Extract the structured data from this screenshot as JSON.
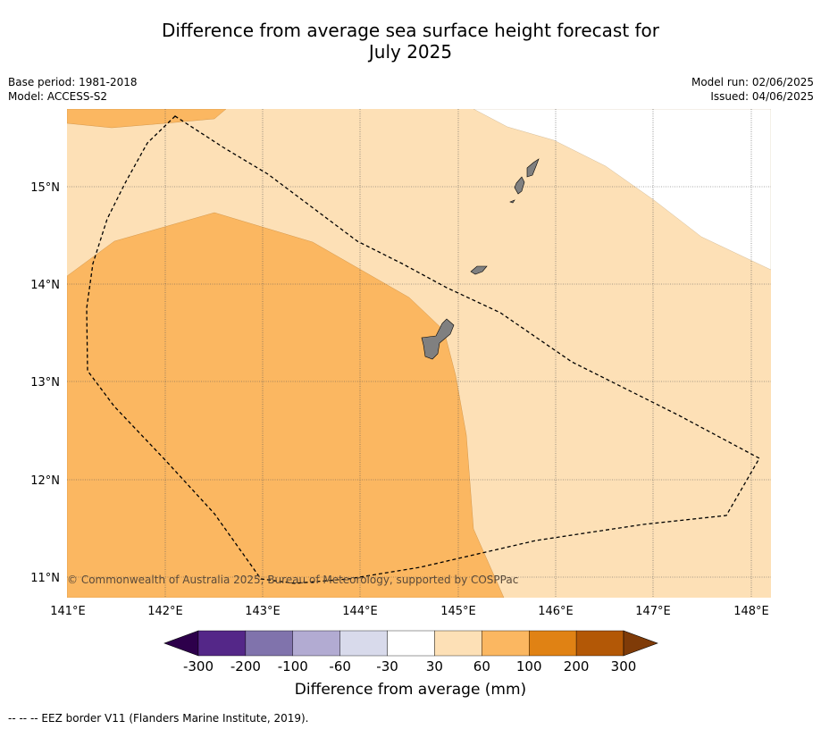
{
  "title_line1": "Difference from average sea surface height forecast for",
  "title_line2": "July 2025",
  "base_period": "Base period: 1981-2018",
  "model": "Model: ACCESS-S2",
  "model_run": "Model run: 02/06/2025",
  "issued": "Issued: 04/06/2025",
  "copyright": "© Commonwealth of Australia 2025, Bureau of Meteorology, supported by COSPPac",
  "lon_labels": [
    "141°E",
    "142°E",
    "143°E",
    "144°E",
    "145°E",
    "146°E",
    "147°E",
    "148°E"
  ],
  "lat_labels": [
    "15°N",
    "14°N",
    "13°N",
    "12°N",
    "11°N"
  ],
  "colorbar": {
    "ticks": [
      "-300",
      "-200",
      "-100",
      "-60",
      "-30",
      "30",
      "60",
      "100",
      "200",
      "300"
    ],
    "colors": [
      "#2d004b",
      "#542788",
      "#8073ac",
      "#b2abd2",
      "#d8daeb",
      "#ffffff",
      "#fde0b6",
      "#fbb761",
      "#e08214",
      "#b35806",
      "#7f3b08"
    ],
    "label": "Difference from average (mm)"
  },
  "footnote": "--  --  -- EEZ border V11 (Flanders Marine Institute, 2019).",
  "colors": {
    "light_orange": "#fde0b6",
    "medium_orange": "#fbb761",
    "land": "#808080"
  }
}
